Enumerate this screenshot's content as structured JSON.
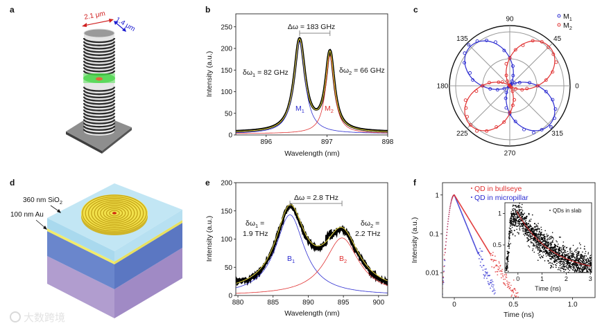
{
  "panel_labels": {
    "a": "a",
    "b": "b",
    "c": "c",
    "d": "d",
    "e": "e",
    "f": "f"
  },
  "watermark": "大数跨境",
  "panel_a": {
    "diameter_long": "2.1 μm",
    "diameter_short": "1.4 μm"
  },
  "panel_d": {
    "sio2_label": "360 nm SiO",
    "sio2_sub": "2",
    "au_label": "100 nm Au"
  },
  "colors": {
    "blue": "#2b2bd0",
    "red": "#e03030",
    "yellow": "#f0e040",
    "black": "#000000"
  },
  "chart_data": [
    {
      "panel": "b",
      "type": "line",
      "xlabel": "Wavelength (nm)",
      "ylabel": "Intensity (a.u.)",
      "xlim": [
        895.5,
        898
      ],
      "ylim": [
        0,
        280
      ],
      "xticks": [
        896,
        897,
        898
      ],
      "yticks": [
        0,
        50,
        100,
        150,
        200,
        250
      ],
      "baseline": 5,
      "series": [
        {
          "name": "M1",
          "label": "M",
          "sub": "1",
          "color": "#2b2bd0",
          "model": "lorentzian",
          "center": 896.55,
          "fwhm": 0.22,
          "amplitude": 212
        },
        {
          "name": "M2",
          "label": "M",
          "sub": "2",
          "color": "#e03030",
          "model": "lorentzian",
          "center": 897.05,
          "fwhm": 0.177,
          "amplitude": 180
        },
        {
          "name": "fit",
          "color": "#f0e040"
        },
        {
          "name": "data",
          "color": "#000000"
        }
      ],
      "annotations": {
        "splitting": "Δω = 183 GHz",
        "linewidth1": {
          "prefix": "δω",
          "sub": "1",
          "suffix": " = 82 GHz"
        },
        "linewidth2": {
          "prefix": "δω",
          "sub": "2",
          "suffix": " = 66 GHz"
        }
      }
    },
    {
      "panel": "c",
      "type": "polar-scatter",
      "angle_ticks": [
        0,
        45,
        90,
        135,
        180,
        225,
        270,
        315
      ],
      "rlim": [
        0,
        1.12
      ],
      "rings": [
        0.5,
        1.0
      ],
      "legend": "top-right",
      "series": [
        {
          "name": "M1",
          "label": "M",
          "sub": "1",
          "color": "#2b2bd0",
          "orientation_deg": 135,
          "amplitude": 1.03
        },
        {
          "name": "M2",
          "label": "M",
          "sub": "2",
          "color": "#e03030",
          "orientation_deg": 45,
          "amplitude": 1.03
        }
      ]
    },
    {
      "panel": "e",
      "type": "line",
      "xlabel": "Wavelength (nm)",
      "ylabel": "Intensity (a.u.)",
      "xlim": [
        879.7,
        901.3
      ],
      "ylim": [
        0,
        200
      ],
      "xticks": [
        880,
        885,
        890,
        895,
        900
      ],
      "yticks": [
        0,
        50,
        100,
        150,
        200
      ],
      "series": [
        {
          "name": "B1",
          "label": "B",
          "sub": "1",
          "color": "#2b2bd0",
          "model": "lorentzian",
          "center": 887.4,
          "fwhm": 5.0,
          "amplitude": 143
        },
        {
          "name": "B2",
          "label": "B",
          "sub": "2",
          "color": "#e03030",
          "model": "lorentzian",
          "center": 894.8,
          "fwhm": 5.9,
          "amplitude": 102
        },
        {
          "name": "fit",
          "color": "#f0e040"
        },
        {
          "name": "data",
          "color": "#000000"
        }
      ],
      "annotations": {
        "splitting": "Δω = 2.8 THz",
        "linewidth1": {
          "prefix": "δω",
          "sub": "1",
          "suffix": " =",
          "value": "1.9 THz"
        },
        "linewidth2": {
          "prefix": "δω",
          "sub": "2",
          "suffix": " =",
          "value": "2.2 THz"
        }
      }
    },
    {
      "panel": "f",
      "type": "scatter",
      "yscale": "log",
      "xlabel": "Time (ns)",
      "ylabel": "Intensity (a.u.)",
      "xlim": [
        -0.1,
        1.19
      ],
      "ylim": [
        0.0023,
        2.07
      ],
      "xticks": [
        0,
        0.5,
        1.0
      ],
      "xticklabels": [
        "0",
        "0.5",
        "1.0"
      ],
      "yticks": [
        0.01,
        0.1,
        1
      ],
      "yticklabels": [
        "0.01",
        "0.1",
        "1"
      ],
      "rise_sigma_ns": 0.042,
      "legend": "top",
      "series": [
        {
          "name": "QD in bullseye",
          "color": "#e03030",
          "decay_time_ns": 0.087
        },
        {
          "name": "QD in micropillar",
          "color": "#2b2bd0",
          "decay_time_ns": 0.058
        }
      ]
    },
    {
      "panel": "f-inset",
      "type": "scatter",
      "xlabel": "Time (ns)",
      "xlim": [
        -0.54,
        3.05
      ],
      "ylim": [
        0.06,
        1.17
      ],
      "xticks": [
        0,
        1,
        2,
        3
      ],
      "yticks": [
        0.5,
        1
      ],
      "legend": "top-right",
      "series": [
        {
          "name": "QDs in slab",
          "color": "#000000",
          "decay_time_ns": 1.42,
          "fit_color": "#d02020"
        }
      ]
    }
  ]
}
